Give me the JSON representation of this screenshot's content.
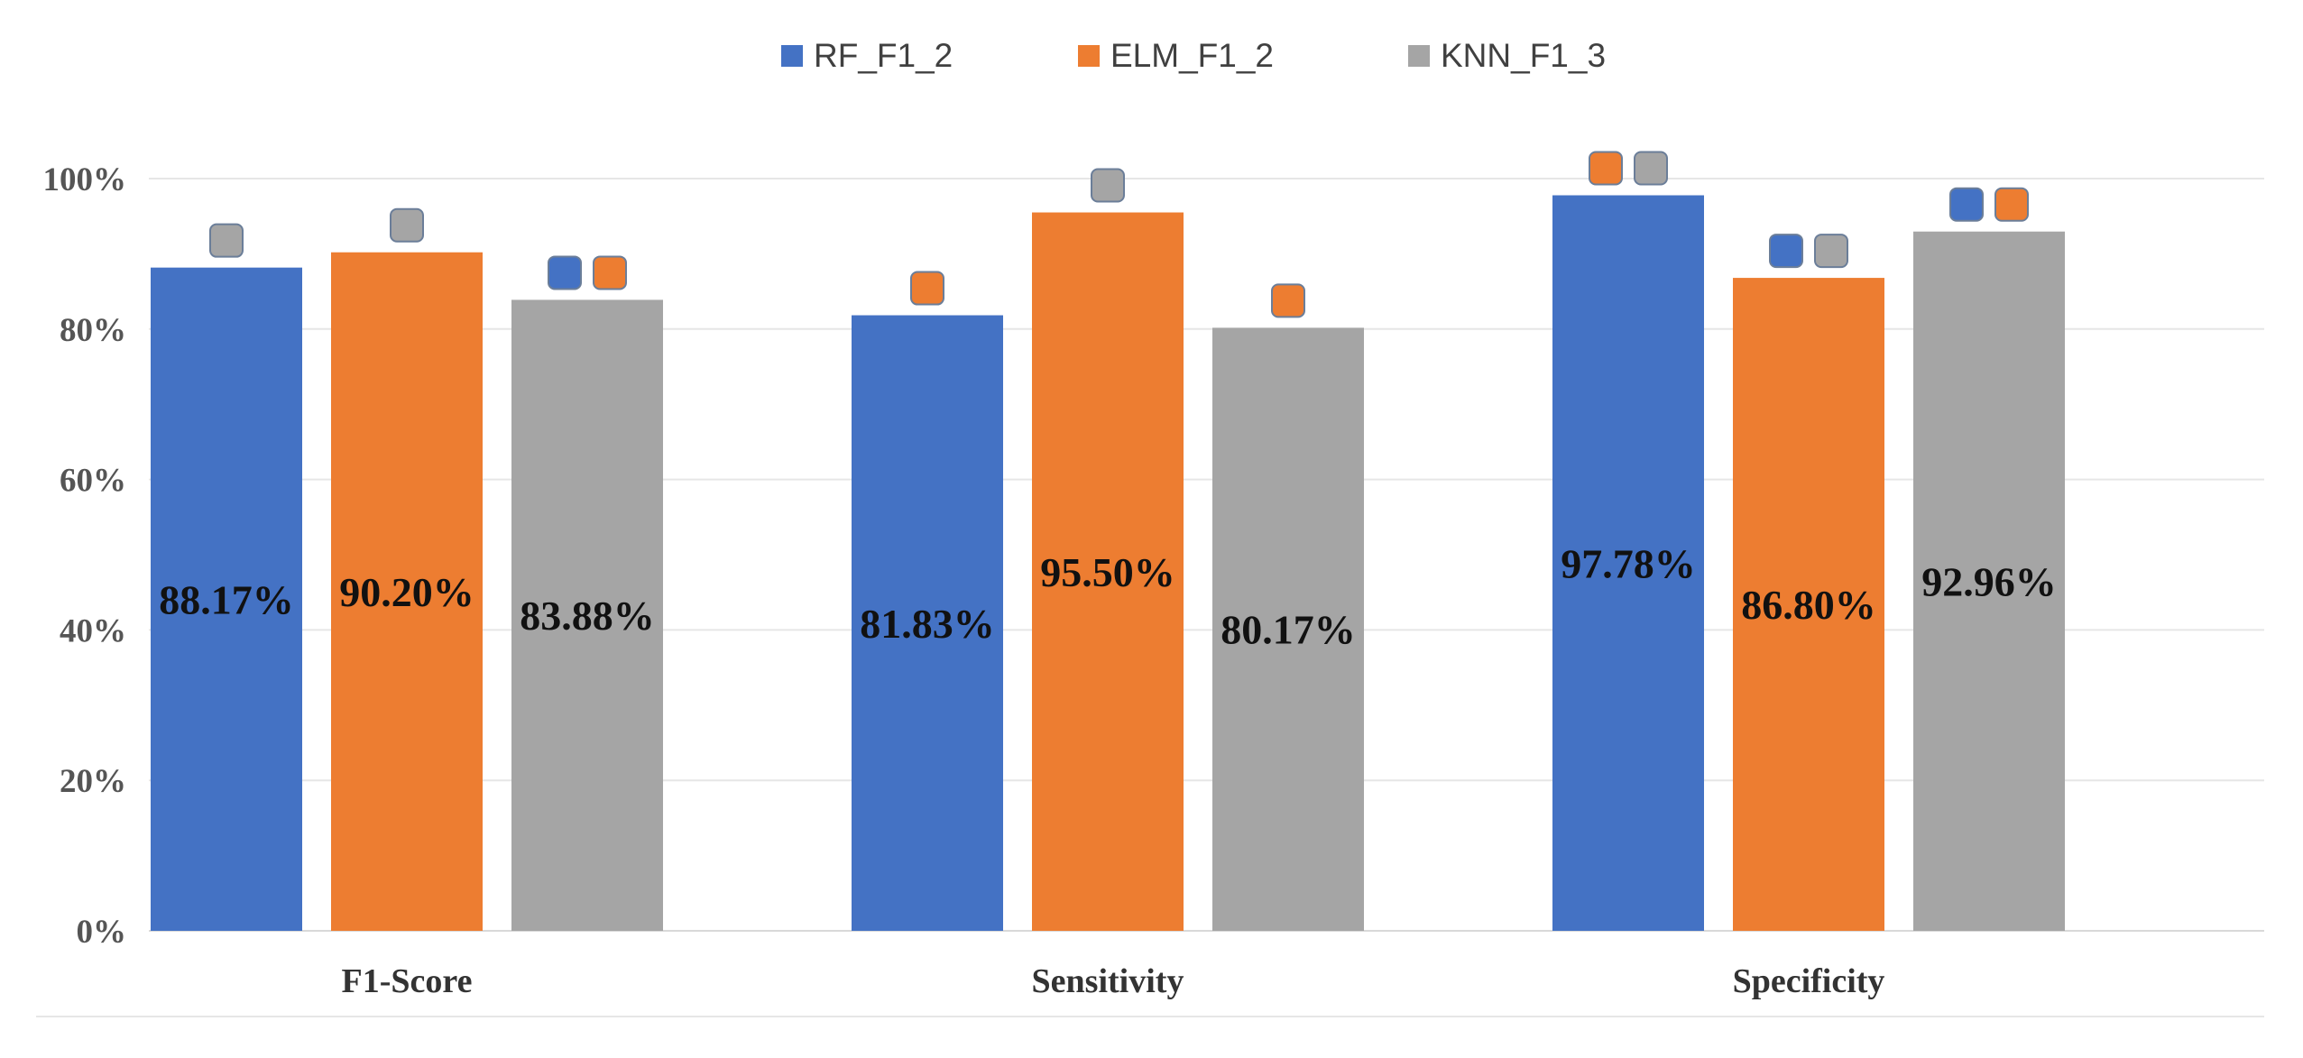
{
  "colors": {
    "RF_F1_2": "#4472C4",
    "ELM_F1_2": "#ED7D31",
    "KNN_F1_3": "#A5A5A5",
    "grid": "#E6E6E6"
  },
  "chart_data": {
    "type": "bar",
    "categories": [
      "F1-Score",
      "Sensitivity",
      "Specificity"
    ],
    "series": [
      {
        "name": "RF_F1_2",
        "values": [
          88.17,
          81.83,
          97.78
        ],
        "labels": [
          "88.17%",
          "81.83%",
          "97.78%"
        ]
      },
      {
        "name": "ELM_F1_2",
        "values": [
          90.2,
          95.5,
          86.8
        ],
        "labels": [
          "90.20%",
          "95.50%",
          "86.80%"
        ]
      },
      {
        "name": "KNN_F1_3",
        "values": [
          83.88,
          80.17,
          92.96
        ],
        "labels": [
          "83.88%",
          "80.17%",
          "92.96%"
        ]
      }
    ],
    "significance_markers": [
      [
        "KNN_F1_3"
      ],
      [
        "KNN_F1_3"
      ],
      [
        "RF_F1_2",
        "ELM_F1_2"
      ],
      [
        "ELM_F1_2"
      ],
      [
        "KNN_F1_3"
      ],
      [
        "ELM_F1_2"
      ],
      [
        "ELM_F1_2",
        "KNN_F1_3"
      ],
      [
        "RF_F1_2",
        "KNN_F1_3"
      ],
      [
        "RF_F1_2",
        "ELM_F1_2"
      ]
    ],
    "y_ticks": [
      "0%",
      "20%",
      "40%",
      "60%",
      "80%",
      "100%"
    ],
    "ylim": [
      0,
      100
    ],
    "grid": true,
    "legend_position": "top-center",
    "title": "",
    "xlabel": "",
    "ylabel": ""
  }
}
